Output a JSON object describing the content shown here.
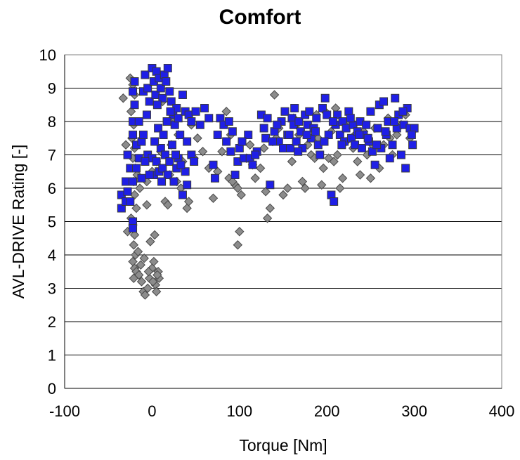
{
  "chart_data": {
    "type": "scatter",
    "title": "Comfort",
    "xlabel": "Torque [Nm]",
    "ylabel": "AVL-DRIVE Rating [-]",
    "xlim": [
      -100,
      400
    ],
    "ylim": [
      0,
      10
    ],
    "xticks": [
      "-100",
      "0",
      "100",
      "200",
      "300",
      "400"
    ],
    "yticks": [
      "0",
      "1",
      "2",
      "3",
      "4",
      "5",
      "6",
      "7",
      "8",
      "9",
      "10"
    ],
    "grid": "horizontal",
    "colors": {
      "series_a": "#8c8c8c",
      "series_b": "#1f1fe6",
      "edge": "#4a4a4a",
      "edge_b": "#3a3a3a",
      "grid": "#000000",
      "frame": "#808080"
    },
    "series": [
      {
        "marker": "diamond",
        "color": "#8c8c8c",
        "points": [
          [
            -25,
            9.3
          ],
          [
            -22,
            9.1
          ],
          [
            -20,
            8.8
          ],
          [
            -24,
            8.3
          ],
          [
            -21,
            7.9
          ],
          [
            -23,
            7.5
          ],
          [
            -20,
            7.2
          ],
          [
            -22,
            6.9
          ],
          [
            -19,
            6.6
          ],
          [
            -21,
            6.2
          ],
          [
            -20,
            5.8
          ],
          [
            -18,
            5.4
          ],
          [
            -22,
            4.9
          ],
          [
            -20,
            4.6
          ],
          [
            -21,
            4.3
          ],
          [
            -19,
            4.0
          ],
          [
            -22,
            3.8
          ],
          [
            -20,
            3.6
          ],
          [
            -18,
            3.5
          ],
          [
            -21,
            3.3
          ],
          [
            -15,
            3.4
          ],
          [
            -12,
            3.2
          ],
          [
            -10,
            2.9
          ],
          [
            -8,
            2.8
          ],
          [
            -5,
            3.0
          ],
          [
            -3,
            3.3
          ],
          [
            0,
            3.6
          ],
          [
            2,
            3.8
          ],
          [
            4,
            3.1
          ],
          [
            5,
            2.9
          ],
          [
            7,
            3.5
          ],
          [
            8,
            3.3
          ],
          [
            -2,
            4.4
          ],
          [
            3,
            4.6
          ],
          [
            -6,
            5.5
          ],
          [
            -28,
            4.7
          ],
          [
            -30,
            7.3
          ],
          [
            -33,
            8.7
          ],
          [
            -14,
            6.0
          ],
          [
            -6,
            6.2
          ],
          [
            0,
            6.5
          ],
          [
            5,
            6.8
          ],
          [
            10,
            7.1
          ],
          [
            15,
            5.6
          ],
          [
            18,
            5.5
          ],
          [
            20,
            6.4
          ],
          [
            22,
            7.3
          ],
          [
            25,
            8.1
          ],
          [
            28,
            6.2
          ],
          [
            30,
            7.6
          ],
          [
            35,
            6.8
          ],
          [
            40,
            5.4
          ],
          [
            42,
            5.6
          ],
          [
            45,
            7.9
          ],
          [
            48,
            6.9
          ],
          [
            52,
            7.5
          ],
          [
            65,
            6.6
          ],
          [
            70,
            5.7
          ],
          [
            75,
            6.5
          ],
          [
            80,
            7.1
          ],
          [
            85,
            8.3
          ],
          [
            88,
            6.3
          ],
          [
            90,
            7.6
          ],
          [
            95,
            6.1
          ],
          [
            98,
            6.0
          ],
          [
            100,
            4.7
          ],
          [
            98,
            4.3
          ],
          [
            102,
            5.8
          ],
          [
            108,
            6.9
          ],
          [
            112,
            7.3
          ],
          [
            118,
            6.3
          ],
          [
            124,
            6.6
          ],
          [
            128,
            7.2
          ],
          [
            130,
            5.9
          ],
          [
            132,
            5.1
          ],
          [
            135,
            5.4
          ],
          [
            138,
            7.4
          ],
          [
            140,
            8.8
          ],
          [
            145,
            7.8
          ],
          [
            150,
            5.8
          ],
          [
            155,
            6.0
          ],
          [
            160,
            6.8
          ],
          [
            162,
            8.1
          ],
          [
            168,
            7.6
          ],
          [
            172,
            6.2
          ],
          [
            175,
            6.0
          ],
          [
            178,
            7.3
          ],
          [
            182,
            7.0
          ],
          [
            186,
            6.9
          ],
          [
            190,
            7.5
          ],
          [
            194,
            6.1
          ],
          [
            196,
            6.6
          ],
          [
            198,
            8.3
          ],
          [
            202,
            6.9
          ],
          [
            205,
            7.7
          ],
          [
            208,
            6.8
          ],
          [
            212,
            7.0
          ],
          [
            215,
            6.0
          ],
          [
            218,
            6.3
          ],
          [
            222,
            7.4
          ],
          [
            226,
            8.0
          ],
          [
            230,
            7.2
          ],
          [
            235,
            6.8
          ],
          [
            238,
            6.4
          ],
          [
            242,
            7.7
          ],
          [
            246,
            7.0
          ],
          [
            250,
            6.3
          ],
          [
            255,
            7.8
          ],
          [
            260,
            6.6
          ],
          [
            265,
            7.3
          ],
          [
            270,
            8.1
          ],
          [
            275,
            7.0
          ],
          [
            280,
            7.6
          ],
          [
            285,
            7.9
          ],
          [
            290,
            8.2
          ],
          [
            295,
            7.5
          ],
          [
            298,
            7.7
          ],
          [
            -16,
            4.1
          ],
          [
            -13,
            3.7
          ],
          [
            -9,
            3.9
          ],
          [
            -4,
            3.5
          ],
          [
            1,
            3.2
          ],
          [
            6,
            3.4
          ],
          [
            -24,
            5.1
          ],
          [
            -17,
            6.4
          ],
          [
            12,
            8.6
          ],
          [
            33,
            6.0
          ],
          [
            58,
            7.1
          ],
          [
            92,
            6.2
          ],
          [
            115,
            6.7
          ],
          [
            142,
            7.5
          ],
          [
            165,
            7.9
          ],
          [
            188,
            8.2
          ],
          [
            210,
            8.4
          ],
          [
            232,
            7.6
          ],
          [
            252,
            7.3
          ],
          [
            272,
            7.5
          ]
        ]
      },
      {
        "marker": "square",
        "color": "#1f1fe6",
        "points": [
          [
            -35,
            5.4
          ],
          [
            -35,
            5.8
          ],
          [
            -30,
            6.2
          ],
          [
            -28,
            5.9
          ],
          [
            -30,
            5.6
          ],
          [
            -25,
            5.6
          ],
          [
            -22,
            5.0
          ],
          [
            -22,
            4.8
          ],
          [
            -22,
            7.6
          ],
          [
            -22,
            8.0
          ],
          [
            -20,
            8.5
          ],
          [
            -22,
            8.9
          ],
          [
            -20,
            9.2
          ],
          [
            -18,
            7.3
          ],
          [
            -15,
            6.9
          ],
          [
            -12,
            7.4
          ],
          [
            -10,
            8.9
          ],
          [
            -8,
            9.4
          ],
          [
            -5,
            9.0
          ],
          [
            -3,
            8.6
          ],
          [
            0,
            9.6
          ],
          [
            2,
            9.2
          ],
          [
            4,
            8.8
          ],
          [
            5,
            9.5
          ],
          [
            8,
            9.3
          ],
          [
            10,
            9.0
          ],
          [
            12,
            8.7
          ],
          [
            14,
            9.4
          ],
          [
            16,
            9.2
          ],
          [
            18,
            9.6
          ],
          [
            20,
            8.9
          ],
          [
            22,
            8.6
          ],
          [
            24,
            8.2
          ],
          [
            26,
            7.9
          ],
          [
            28,
            8.4
          ],
          [
            30,
            8.1
          ],
          [
            32,
            7.6
          ],
          [
            35,
            8.8
          ],
          [
            38,
            8.3
          ],
          [
            40,
            7.4
          ],
          [
            42,
            8.2
          ],
          [
            45,
            8.0
          ],
          [
            50,
            8.3
          ],
          [
            55,
            7.9
          ],
          [
            60,
            8.4
          ],
          [
            -15,
            8.0
          ],
          [
            -10,
            7.6
          ],
          [
            -5,
            7.0
          ],
          [
            0,
            6.9
          ],
          [
            2,
            6.4
          ],
          [
            5,
            6.8
          ],
          [
            8,
            6.5
          ],
          [
            10,
            7.2
          ],
          [
            12,
            6.6
          ],
          [
            15,
            7.0
          ],
          [
            18,
            6.4
          ],
          [
            20,
            6.8
          ],
          [
            25,
            6.2
          ],
          [
            28,
            6.6
          ],
          [
            30,
            6.9
          ],
          [
            35,
            5.8
          ],
          [
            38,
            6.5
          ],
          [
            40,
            6.1
          ],
          [
            45,
            7.0
          ],
          [
            -28,
            7.0
          ],
          [
            -25,
            6.6
          ],
          [
            -22,
            6.2
          ],
          [
            -12,
            6.3
          ],
          [
            -8,
            6.8
          ],
          [
            -3,
            6.4
          ],
          [
            3,
            7.4
          ],
          [
            7,
            7.8
          ],
          [
            13,
            7.6
          ],
          [
            17,
            8.0
          ],
          [
            23,
            7.3
          ],
          [
            70,
            6.7
          ],
          [
            72,
            6.3
          ],
          [
            75,
            7.6
          ],
          [
            78,
            8.1
          ],
          [
            82,
            7.9
          ],
          [
            85,
            7.4
          ],
          [
            88,
            8.0
          ],
          [
            90,
            7.1
          ],
          [
            92,
            7.7
          ],
          [
            95,
            6.4
          ],
          [
            98,
            6.8
          ],
          [
            100,
            7.2
          ],
          [
            105,
            6.9
          ],
          [
            110,
            7.6
          ],
          [
            112,
            6.9
          ],
          [
            115,
            6.7
          ],
          [
            120,
            7.1
          ],
          [
            125,
            8.2
          ],
          [
            128,
            7.8
          ],
          [
            130,
            7.5
          ],
          [
            132,
            8.1
          ],
          [
            135,
            6.1
          ],
          [
            140,
            7.7
          ],
          [
            145,
            7.4
          ],
          [
            148,
            8.0
          ],
          [
            150,
            7.2
          ],
          [
            152,
            8.3
          ],
          [
            155,
            7.6
          ],
          [
            158,
            7.2
          ],
          [
            160,
            8.1
          ],
          [
            162,
            7.9
          ],
          [
            165,
            7.4
          ],
          [
            168,
            8.0
          ],
          [
            170,
            7.7
          ],
          [
            172,
            7.2
          ],
          [
            175,
            8.2
          ],
          [
            178,
            7.9
          ],
          [
            180,
            8.3
          ],
          [
            182,
            7.5
          ],
          [
            185,
            7.8
          ],
          [
            188,
            8.1
          ],
          [
            190,
            7.3
          ],
          [
            192,
            7.0
          ],
          [
            195,
            8.4
          ],
          [
            198,
            8.7
          ],
          [
            200,
            8.2
          ],
          [
            202,
            7.6
          ],
          [
            205,
            5.8
          ],
          [
            208,
            5.6
          ],
          [
            210,
            7.9
          ],
          [
            212,
            8.2
          ],
          [
            215,
            7.6
          ],
          [
            218,
            8.0
          ],
          [
            220,
            7.4
          ],
          [
            222,
            7.8
          ],
          [
            225,
            8.3
          ],
          [
            228,
            7.5
          ],
          [
            230,
            7.9
          ],
          [
            232,
            7.3
          ],
          [
            235,
            7.7
          ],
          [
            238,
            8.0
          ],
          [
            240,
            7.2
          ],
          [
            242,
            7.6
          ],
          [
            245,
            7.9
          ],
          [
            248,
            7.4
          ],
          [
            250,
            8.3
          ],
          [
            252,
            7.1
          ],
          [
            255,
            6.7
          ],
          [
            258,
            7.8
          ],
          [
            260,
            8.5
          ],
          [
            262,
            7.2
          ],
          [
            265,
            8.6
          ],
          [
            268,
            7.6
          ],
          [
            270,
            8.0
          ],
          [
            272,
            6.9
          ],
          [
            275,
            7.3
          ],
          [
            278,
            8.7
          ],
          [
            280,
            7.8
          ],
          [
            282,
            8.2
          ],
          [
            285,
            7.0
          ],
          [
            288,
            7.9
          ],
          [
            290,
            6.6
          ],
          [
            292,
            8.4
          ],
          [
            295,
            7.8
          ],
          [
            298,
            7.3
          ],
          [
            300,
            7.8
          ],
          [
            -18,
            6.6
          ],
          [
            -6,
            8.2
          ],
          [
            6,
            8.5
          ],
          [
            11,
            6.2
          ],
          [
            21,
            8.3
          ],
          [
            27,
            7.0
          ],
          [
            33,
            6.7
          ],
          [
            48,
            6.8
          ],
          [
            65,
            8.1
          ],
          [
            103,
            7.4
          ],
          [
            118,
            7.0
          ],
          [
            138,
            7.4
          ],
          [
            143,
            7.9
          ],
          [
            157,
            7.6
          ],
          [
            163,
            8.4
          ],
          [
            167,
            7.1
          ],
          [
            177,
            7.6
          ],
          [
            187,
            7.7
          ],
          [
            197,
            7.4
          ],
          [
            207,
            8.0
          ],
          [
            217,
            7.3
          ],
          [
            227,
            8.1
          ],
          [
            237,
            7.6
          ],
          [
            247,
            7.5
          ],
          [
            257,
            7.3
          ],
          [
            267,
            7.7
          ],
          [
            277,
            8.0
          ],
          [
            287,
            8.3
          ],
          [
            297,
            7.6
          ]
        ]
      }
    ]
  }
}
